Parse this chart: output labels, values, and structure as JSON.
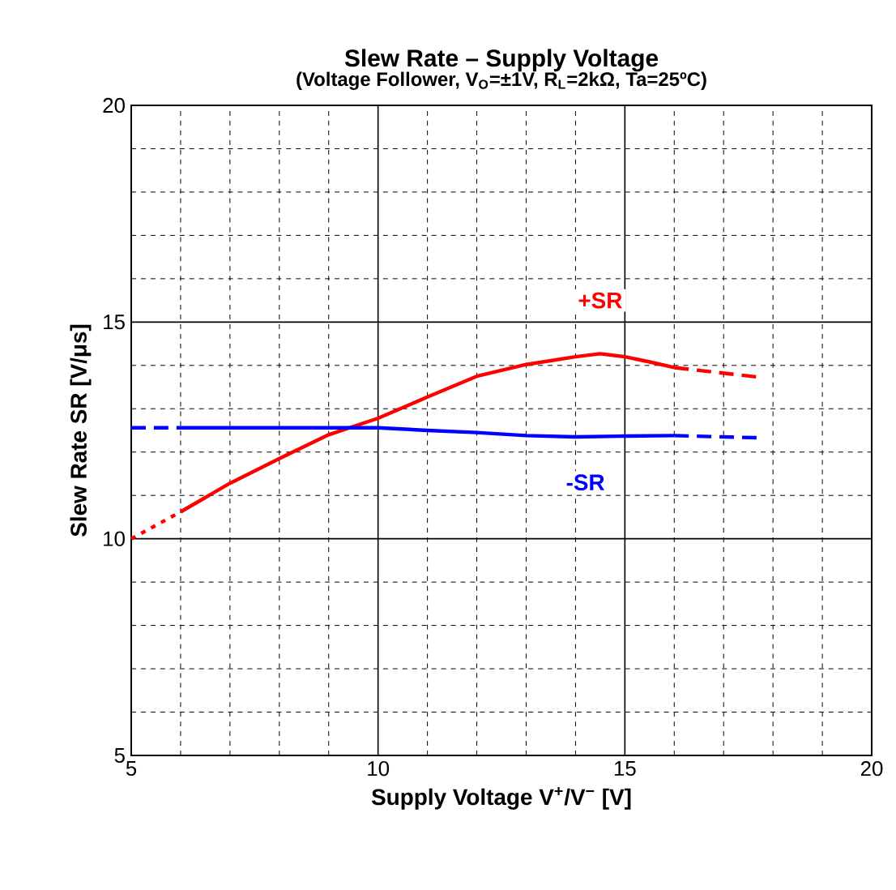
{
  "chart_data": {
    "type": "line",
    "title": "Slew Rate – Supply Voltage",
    "subtitle": "(Voltage Follower, V$_{O}$=±1V, R$_{L}$=2kΩ, Ta=25ºC)",
    "xlabel": "Supply Voltage V$^{+}$/V$^{−}$ [V]",
    "ylabel": "Slew Rate SR [V/μs]",
    "xlim": [
      5,
      20
    ],
    "ylim": [
      5,
      20
    ],
    "xticks": [
      5,
      10,
      15,
      20
    ],
    "yticks": [
      5,
      10,
      15,
      20
    ],
    "grid": true,
    "marker": "none",
    "series": [
      {
        "color": "#ff0000",
        "line_style": "dotted",
        "x": [
          5,
          6
        ],
        "values": [
          10.0,
          10.62
        ]
      },
      {
        "color": "#ff0000",
        "line_style": "solid",
        "x": [
          6,
          7,
          8,
          9,
          10,
          11,
          12,
          13,
          14,
          14.5,
          15,
          15.5,
          16
        ],
        "values": [
          10.62,
          11.28,
          11.85,
          12.4,
          12.78,
          13.27,
          13.75,
          14.02,
          14.2,
          14.27,
          14.2,
          14.08,
          13.95
        ]
      },
      {
        "color": "#ff0000",
        "line_style": "dashed",
        "x": [
          16,
          17.7
        ],
        "values": [
          13.95,
          13.73
        ]
      },
      {
        "color": "#0000ff",
        "line_style": "dashed",
        "x": [
          5,
          6
        ],
        "values": [
          12.56,
          12.56
        ]
      },
      {
        "color": "#0000ff",
        "line_style": "solid",
        "x": [
          6,
          7,
          8,
          9,
          10,
          11,
          12,
          13,
          14,
          15,
          16
        ],
        "values": [
          12.56,
          12.56,
          12.56,
          12.56,
          12.56,
          12.5,
          12.45,
          12.38,
          12.35,
          12.37,
          12.38
        ]
      },
      {
        "color": "#0000ff",
        "line_style": "dashed",
        "x": [
          16,
          17.7
        ],
        "values": [
          12.38,
          12.33
        ]
      }
    ],
    "annotations": [
      {
        "text": "+SR",
        "x": 14.5,
        "y": 15.5
      },
      {
        "text": "-SR",
        "x": 14.2,
        "y": 11.3
      }
    ]
  }
}
